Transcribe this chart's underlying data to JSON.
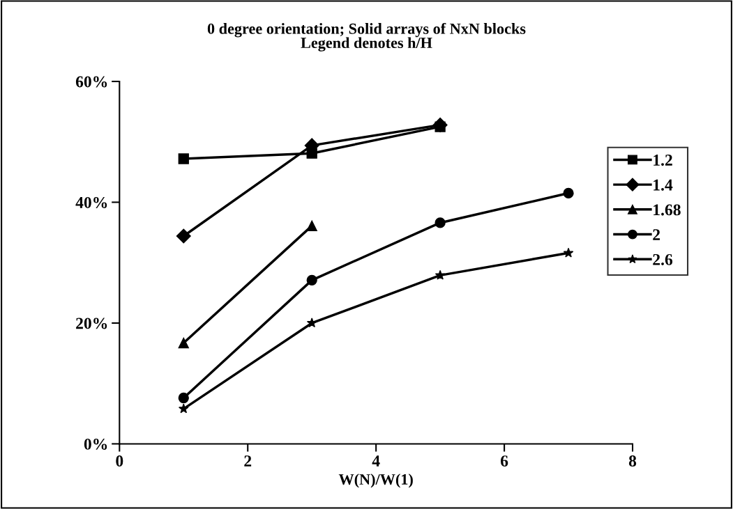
{
  "chart_data": {
    "type": "line",
    "title": "0 degree orientation; Solid arrays of NxN blocks",
    "subtitle": "Legend denotes h/H",
    "xlabel": "W(N)/W(1)",
    "xlim": [
      0,
      8
    ],
    "xticks": [
      0,
      2,
      4,
      6,
      8
    ],
    "ylim": [
      0,
      60
    ],
    "yticks": [
      {
        "value": 0,
        "label": "0%"
      },
      {
        "value": 20,
        "label": "20%"
      },
      {
        "value": 40,
        "label": "40%"
      },
      {
        "value": 60,
        "label": "60%"
      }
    ],
    "grid": false,
    "legend": "right",
    "line_style": "solid",
    "series": [
      {
        "name": "1.2",
        "color": "#000000",
        "marker": "square",
        "x": [
          1,
          3,
          5
        ],
        "values": [
          47.2,
          48.1,
          52.5
        ]
      },
      {
        "name": "1.4",
        "color": "#000000",
        "marker": "diamond",
        "x": [
          1,
          3,
          5
        ],
        "values": [
          34.4,
          49.4,
          52.8
        ]
      },
      {
        "name": "1.68",
        "color": "#000000",
        "marker": "triangle",
        "x": [
          1,
          3
        ],
        "values": [
          16.7,
          36.1
        ]
      },
      {
        "name": "2",
        "color": "#000000",
        "marker": "circle",
        "x": [
          1,
          3,
          5,
          7
        ],
        "values": [
          7.6,
          27.1,
          36.6,
          41.5
        ]
      },
      {
        "name": "2.6",
        "color": "#000000",
        "marker": "star",
        "x": [
          1,
          3,
          5,
          7
        ],
        "values": [
          5.8,
          20.0,
          27.9,
          31.6
        ]
      }
    ]
  }
}
